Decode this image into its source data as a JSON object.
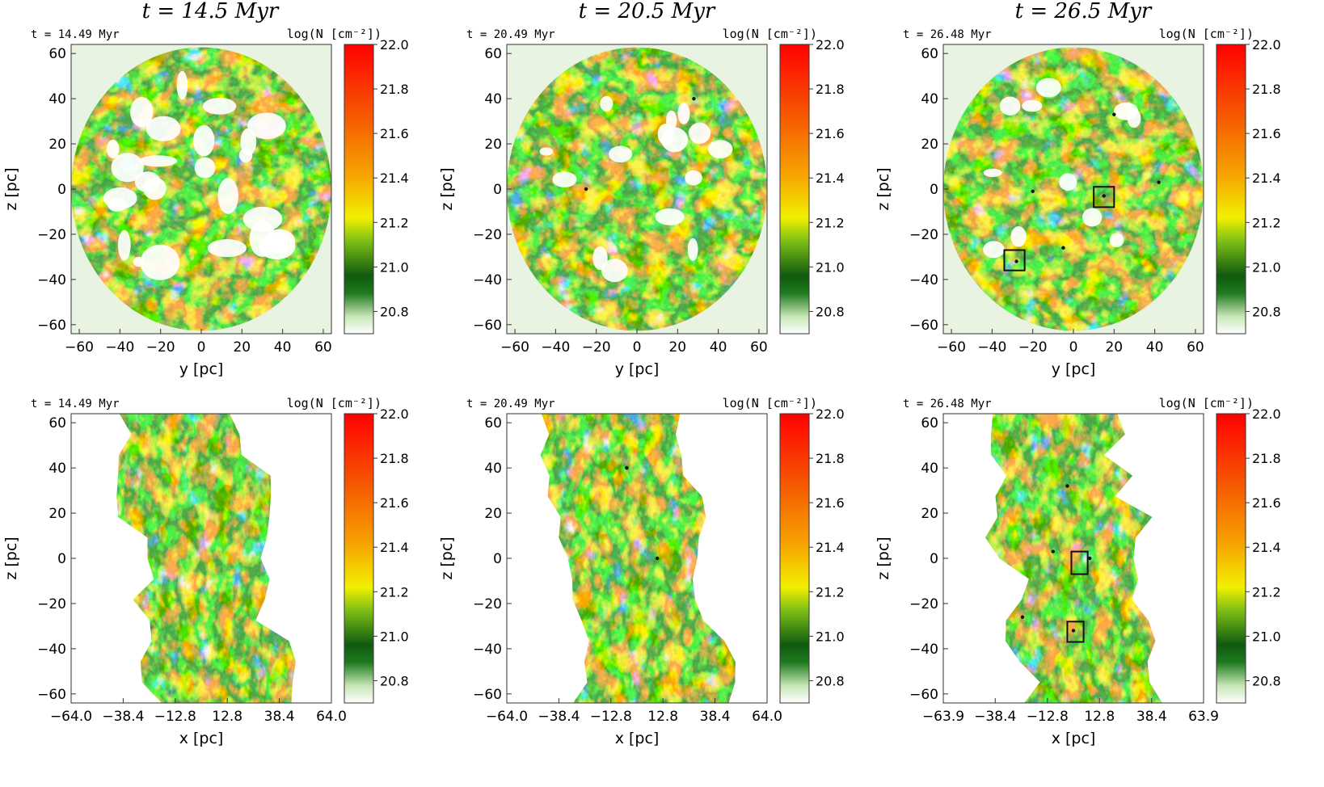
{
  "column_titles": [
    "t = 14.5 Myr",
    "t = 20.5 Myr",
    "t = 26.5 Myr"
  ],
  "colorbar": {
    "label": "log(N [cm⁻²])",
    "ticks": [
      "22.0",
      "21.8",
      "21.6",
      "21.4",
      "21.2",
      "21.0",
      "20.8"
    ],
    "tick_values": [
      22.0,
      21.8,
      21.6,
      21.4,
      21.2,
      21.0,
      20.8
    ],
    "range": [
      20.7,
      22.0
    ],
    "stops": [
      "#ffffff",
      "#c6e6b5",
      "#1f7a1f",
      "#0f5a0f",
      "#7dbf16",
      "#f2f000",
      "#f7a300",
      "#f55a00",
      "#ff0000"
    ]
  },
  "panels": [
    {
      "id": "r1c1",
      "time": "t =  14.49 Myr",
      "xlabel": "y [pc]",
      "ylabel": "z [pc]",
      "xticks": [
        "−60",
        "−40",
        "−20",
        "0",
        "20",
        "40",
        "60"
      ],
      "xtick_values": [
        -60,
        -40,
        -20,
        0,
        20,
        40,
        60
      ],
      "xrange": [
        -64,
        64
      ],
      "yticks": [
        "60",
        "40",
        "20",
        "0",
        "−20",
        "−40",
        "−60"
      ],
      "ytick_values": [
        60,
        40,
        20,
        0,
        -20,
        -40,
        -60
      ],
      "yrange": [
        -64,
        64
      ],
      "shape": "disk",
      "seed": 11,
      "voidiness": 0.62,
      "sinks": [],
      "boxes": []
    },
    {
      "id": "r1c2",
      "time": "t =  20.49 Myr",
      "xlabel": "y [pc]",
      "ylabel": "z [pc]",
      "xticks": [
        "−60",
        "−40",
        "−20",
        "0",
        "20",
        "40",
        "60"
      ],
      "xtick_values": [
        -60,
        -40,
        -20,
        0,
        20,
        40,
        60
      ],
      "xrange": [
        -64,
        64
      ],
      "yticks": [
        "60",
        "40",
        "20",
        "0",
        "−20",
        "−40",
        "−60"
      ],
      "ytick_values": [
        60,
        40,
        20,
        0,
        -20,
        -40,
        -60
      ],
      "yrange": [
        -64,
        64
      ],
      "shape": "disk",
      "seed": 23,
      "voidiness": 0.38,
      "sinks": [
        [
          -25,
          0
        ],
        [
          28,
          40
        ]
      ],
      "boxes": []
    },
    {
      "id": "r1c3",
      "time": "t =  26.48 Myr",
      "xlabel": "y [pc]",
      "ylabel": "z [pc]",
      "xticks": [
        "−60",
        "−40",
        "−20",
        "0",
        "20",
        "40",
        "60"
      ],
      "xtick_values": [
        -60,
        -40,
        -20,
        0,
        20,
        40,
        60
      ],
      "xrange": [
        -64,
        64
      ],
      "yticks": [
        "60",
        "40",
        "20",
        "0",
        "−20",
        "−40",
        "−60"
      ],
      "ytick_values": [
        60,
        40,
        20,
        0,
        -20,
        -40,
        -60
      ],
      "yrange": [
        -64,
        64
      ],
      "shape": "disk",
      "seed": 37,
      "voidiness": 0.28,
      "sinks": [
        [
          -20,
          -1
        ],
        [
          -5,
          -26
        ],
        [
          15,
          -3
        ],
        [
          20,
          33
        ],
        [
          42,
          3
        ],
        [
          -28,
          -32
        ]
      ],
      "boxes": [
        [
          10,
          -8,
          20,
          1
        ],
        [
          -34,
          -36,
          -24,
          -27
        ]
      ]
    },
    {
      "id": "r2c1",
      "time": "t =  14.49 Myr",
      "xlabel": "x [pc]",
      "ylabel": "z [pc]",
      "xticks": [
        "−64.0",
        "−38.4",
        "−12.8",
        "12.8",
        "38.4",
        "64.0"
      ],
      "xtick_values": [
        -64,
        -38.4,
        -12.8,
        12.8,
        38.4,
        64
      ],
      "xrange": [
        -64,
        64
      ],
      "yticks": [
        "60",
        "40",
        "20",
        "0",
        "−20",
        "−40",
        "−60"
      ],
      "ytick_values": [
        60,
        40,
        20,
        0,
        -20,
        -40,
        -60
      ],
      "yrange": [
        -64,
        64
      ],
      "shape": "filament",
      "seed": 51,
      "voidiness": 0.25,
      "sinks": [],
      "boxes": []
    },
    {
      "id": "r2c2",
      "time": "t =  20.49 Myr",
      "xlabel": "x [pc]",
      "ylabel": "z [pc]",
      "xticks": [
        "−64.0",
        "−38.4",
        "−12.8",
        "12.8",
        "38.4",
        "64.0"
      ],
      "xtick_values": [
        -64,
        -38.4,
        -12.8,
        12.8,
        38.4,
        64
      ],
      "xrange": [
        -64,
        64
      ],
      "yticks": [
        "60",
        "40",
        "20",
        "0",
        "−20",
        "−40",
        "−60"
      ],
      "ytick_values": [
        60,
        40,
        20,
        0,
        -20,
        -40,
        -60
      ],
      "yrange": [
        -64,
        64
      ],
      "shape": "filament",
      "seed": 63,
      "voidiness": 0.25,
      "sinks": [
        [
          -5,
          40
        ],
        [
          10,
          0
        ]
      ],
      "boxes": []
    },
    {
      "id": "r2c3",
      "time": "t =  26.48 Myr",
      "xlabel": "x [pc]",
      "ylabel": "z [pc]",
      "xticks": [
        "−63.9",
        "−38.4",
        "−12.8",
        "12.8",
        "38.4",
        "63.9"
      ],
      "xtick_values": [
        -63.9,
        -38.4,
        -12.8,
        12.8,
        38.4,
        63.9
      ],
      "xrange": [
        -63.9,
        63.9
      ],
      "yticks": [
        "60",
        "40",
        "20",
        "0",
        "−20",
        "−40",
        "−60"
      ],
      "ytick_values": [
        60,
        40,
        20,
        0,
        -20,
        -40,
        -60
      ],
      "yrange": [
        -64,
        64
      ],
      "shape": "filament",
      "seed": 79,
      "voidiness": 0.22,
      "sinks": [
        [
          -3,
          32
        ],
        [
          -10,
          3
        ],
        [
          8,
          0
        ],
        [
          -25,
          -26
        ],
        [
          0,
          -32
        ]
      ],
      "boxes": [
        [
          -1,
          -7,
          7,
          3
        ],
        [
          -3,
          -37,
          5,
          -28
        ]
      ]
    }
  ]
}
